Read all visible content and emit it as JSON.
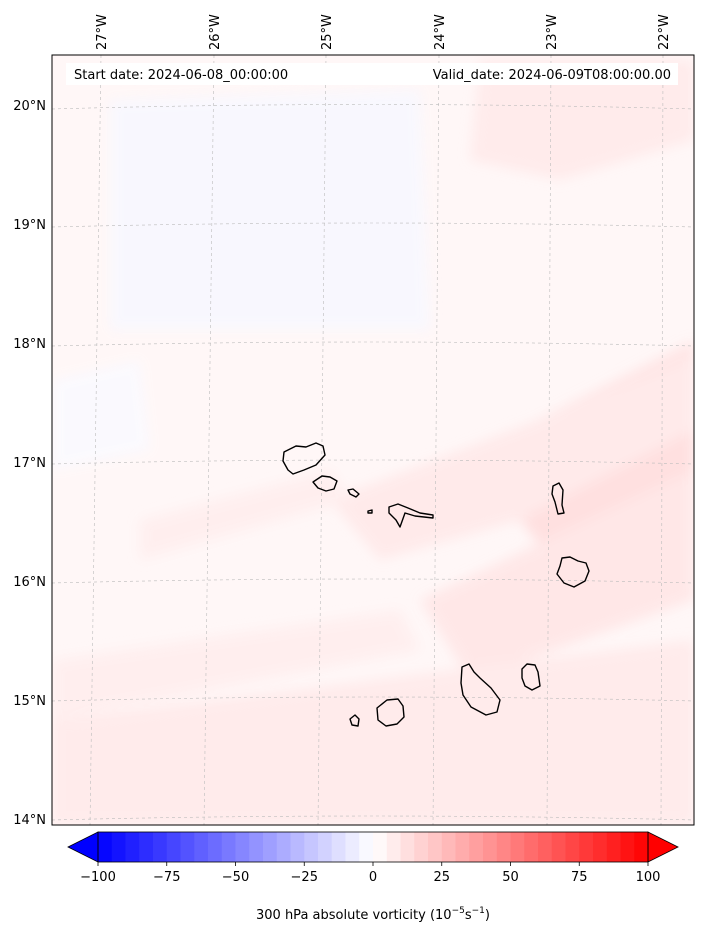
{
  "header": {
    "start_date": "Start date: 2024-06-08_00:00:00",
    "valid_date": "Valid_date: 2024-06-09T08:00:00.00"
  },
  "axes": {
    "lon_labels": [
      "27°W",
      "26°W",
      "25°W",
      "24°W",
      "23°W",
      "22°W"
    ],
    "lat_labels": [
      "20°N",
      "19°N",
      "18°N",
      "17°N",
      "16°N",
      "15°N",
      "14°N"
    ]
  },
  "colorbar": {
    "ticks": [
      "−100",
      "−75",
      "−50",
      "−25",
      "0",
      "25",
      "50",
      "75",
      "100"
    ],
    "label_main": "300 hPa absolute vorticity (10",
    "label_exp1": "−5",
    "label_mid": "s",
    "label_exp2": "−1",
    "label_end": ")",
    "min": -100,
    "max": 100,
    "colors": {
      "negative": "#0000ff",
      "zero": "#ffffff",
      "positive": "#ff0000"
    }
  },
  "map": {
    "field_background": "#fff6f6",
    "coastline_color": "#000000"
  }
}
